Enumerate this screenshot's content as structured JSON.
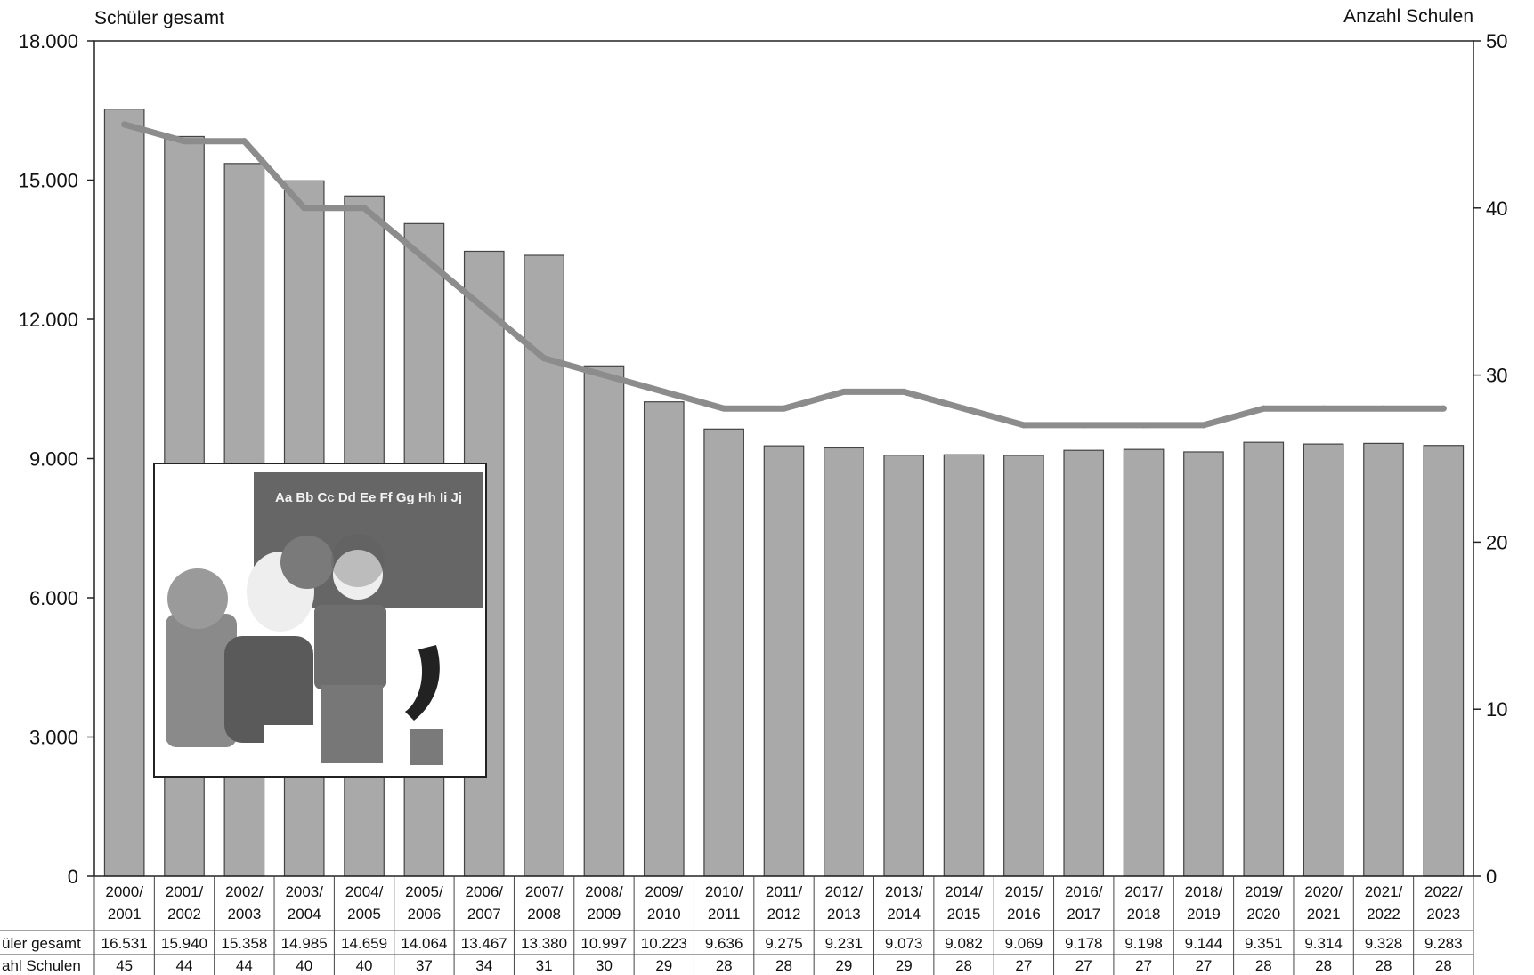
{
  "chart_data": {
    "type": "bar",
    "y_left_label": "Schüler gesamt",
    "y_right_label": "Anzahl Schulen",
    "y_left_range": [
      0,
      18000
    ],
    "y_left_ticks": [
      "0",
      "3.000",
      "6.000",
      "9.000",
      "12.000",
      "15.000",
      "18.000"
    ],
    "y_right_range": [
      0,
      50
    ],
    "y_right_ticks": [
      "0",
      "10",
      "20",
      "30",
      "40",
      "50"
    ],
    "categories": [
      [
        "2000/",
        "2001"
      ],
      [
        "2001/",
        "2002"
      ],
      [
        "2002/",
        "2003"
      ],
      [
        "2003/",
        "2004"
      ],
      [
        "2004/",
        "2005"
      ],
      [
        "2005/",
        "2006"
      ],
      [
        "2006/",
        "2007"
      ],
      [
        "2007/",
        "2008"
      ],
      [
        "2008/",
        "2009"
      ],
      [
        "2009/",
        "2010"
      ],
      [
        "2010/",
        "2011"
      ],
      [
        "2011/",
        "2012"
      ],
      [
        "2012/",
        "2013"
      ],
      [
        "2013/",
        "2014"
      ],
      [
        "2014/",
        "2015"
      ],
      [
        "2015/",
        "2016"
      ],
      [
        "2016/",
        "2017"
      ],
      [
        "2017/",
        "2018"
      ],
      [
        "2018/",
        "2019"
      ],
      [
        "2019/",
        "2020"
      ],
      [
        "2020/",
        "2021"
      ],
      [
        "2021/",
        "2022"
      ],
      [
        "2022/",
        "2023"
      ]
    ],
    "series": [
      {
        "name": "Schüler gesamt",
        "kind": "bar",
        "axis": "left",
        "color": "#a9a9a9",
        "values": [
          16531,
          15940,
          15358,
          14985,
          14659,
          14064,
          13467,
          13380,
          10997,
          10223,
          9636,
          9275,
          9231,
          9073,
          9082,
          9069,
          9178,
          9198,
          9144,
          9351,
          9314,
          9328,
          9283
        ],
        "labels": [
          "16.531",
          "15.940",
          "15.358",
          "14.985",
          "14.659",
          "14.064",
          "13.467",
          "13.380",
          "10.997",
          "10.223",
          "9.636",
          "9.275",
          "9.231",
          "9.073",
          "9.082",
          "9.069",
          "9.178",
          "9.198",
          "9.144",
          "9.351",
          "9.314",
          "9.328",
          "9.283"
        ]
      },
      {
        "name": "Anzahl Schulen",
        "kind": "line",
        "axis": "right",
        "color": "#8c8c8c",
        "values": [
          45,
          44,
          44,
          40,
          40,
          37,
          34,
          31,
          30,
          29,
          28,
          28,
          29,
          29,
          28,
          27,
          27,
          27,
          27,
          28,
          28,
          28,
          28
        ],
        "labels": [
          "45",
          "44",
          "44",
          "40",
          "40",
          "37",
          "34",
          "31",
          "30",
          "29",
          "28",
          "28",
          "29",
          "29",
          "28",
          "27",
          "27",
          "27",
          "27",
          "28",
          "28",
          "28",
          "28"
        ]
      }
    ],
    "table_row_labels": [
      "üler gesamt",
      "ahl Schulen"
    ],
    "inset_image": {
      "caption": "Aa Bb Cc Dd Ee Ff Gg Hh Ii Jj",
      "icon": "children-at-blackboard-illustration"
    }
  }
}
